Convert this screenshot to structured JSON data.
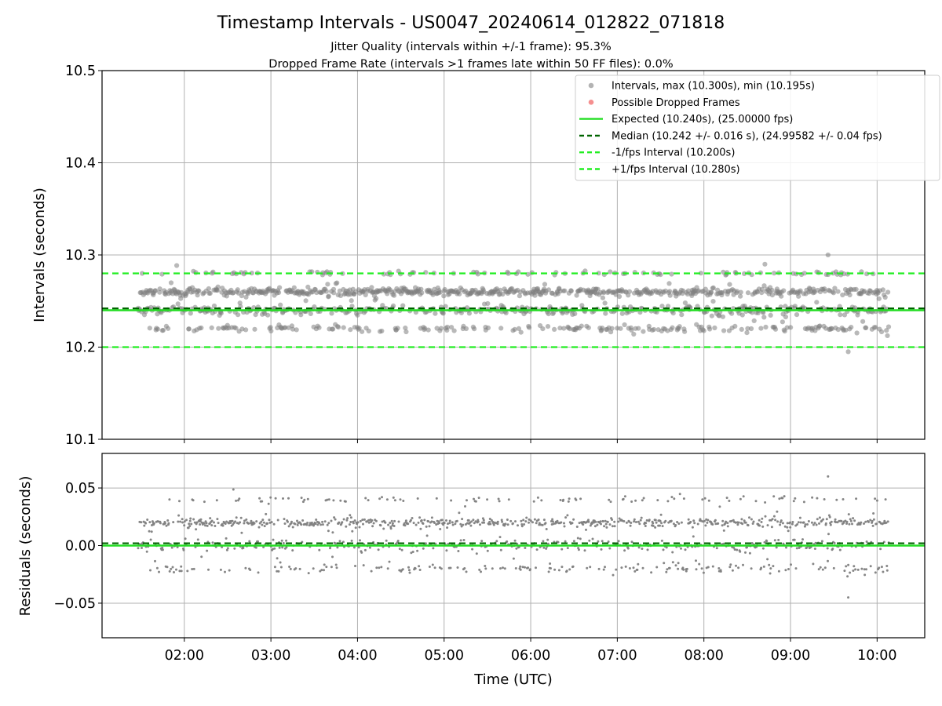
{
  "figure": {
    "title": "Timestamp Intervals - US0047_20240614_012822_071818",
    "subtitle_1": "Jitter Quality (intervals within +/-1 frame): 95.3%",
    "subtitle_2": "Dropped Frame Rate (intervals >1 frames late within 50 FF files): 0.0%",
    "xlabel": "Time (UTC)"
  },
  "colors": {
    "points": "#808080",
    "dropped": "#ef4444",
    "expected": "#22dd22",
    "median": "#006400",
    "interval_lines": "#22ee22",
    "grid": "#b0b0b0"
  },
  "chart_data": [
    {
      "type": "scatter",
      "panel": "top",
      "ylabel": "Intervals (seconds)",
      "xlim": [
        "01:03",
        "10:33"
      ],
      "ylim": [
        10.1,
        10.5
      ],
      "x_ticks": [
        "02:00",
        "03:00",
        "04:00",
        "05:00",
        "06:00",
        "07:00",
        "08:00",
        "09:00",
        "10:00"
      ],
      "y_ticks": [
        "10.1",
        "10.2",
        "10.3",
        "10.4",
        "10.5"
      ],
      "y_tick_values": [
        10.1,
        10.2,
        10.3,
        10.4,
        10.5
      ],
      "grid": true,
      "legend_position": "top-right",
      "time_span": [
        "01:28",
        "10:08"
      ],
      "series": [
        {
          "name": "Intervals, max (10.300s), min (10.195s)",
          "kind": "scatter",
          "levels": [
            {
              "value": 10.22,
              "spread": 0.003,
              "share": 0.16
            },
            {
              "value": 10.24,
              "spread": 0.004,
              "share": 0.28
            },
            {
              "value": 10.26,
              "spread": 0.003,
              "share": 0.48
            },
            {
              "value": 10.28,
              "spread": 0.002,
              "share": 0.08
            }
          ],
          "max": 10.3,
          "min": 10.195
        },
        {
          "name": "Possible Dropped Frames",
          "kind": "scatter",
          "values": []
        },
        {
          "name": "Expected (10.240s), (25.00000 fps)",
          "kind": "hline",
          "y": 10.24,
          "style": "solid"
        },
        {
          "name": "Median (10.242 +/- 0.016 s), (24.99582 +/- 0.04 fps)",
          "kind": "hline",
          "y": 10.242,
          "style": "dashed"
        },
        {
          "name": "-1/fps Interval (10.200s)",
          "kind": "hline",
          "y": 10.2,
          "style": "dashed"
        },
        {
          "name": "+1/fps Interval (10.280s)",
          "kind": "hline",
          "y": 10.28,
          "style": "dashed"
        }
      ]
    },
    {
      "type": "scatter",
      "panel": "bottom",
      "ylabel": "Residuals (seconds)",
      "xlabel": "Time (UTC)",
      "xlim": [
        "01:03",
        "10:33"
      ],
      "ylim": [
        -0.08,
        0.08
      ],
      "x_ticks": [
        "02:00",
        "03:00",
        "04:00",
        "05:00",
        "06:00",
        "07:00",
        "08:00",
        "09:00",
        "10:00"
      ],
      "y_ticks": [
        "0.05",
        "0.00",
        "−0.05"
      ],
      "y_tick_values": [
        0.05,
        0.0,
        -0.05
      ],
      "grid": true,
      "series": [
        {
          "name": "Residuals",
          "kind": "scatter",
          "levels": [
            {
              "value": -0.02,
              "spread": 0.003,
              "share": 0.16
            },
            {
              "value": 0.0,
              "spread": 0.004,
              "share": 0.28
            },
            {
              "value": 0.02,
              "spread": 0.003,
              "share": 0.48
            },
            {
              "value": 0.04,
              "spread": 0.002,
              "share": 0.08
            }
          ],
          "max": 0.06,
          "min": -0.045
        },
        {
          "name": "Expected",
          "kind": "hline",
          "y": 0.0,
          "style": "solid"
        },
        {
          "name": "Median",
          "kind": "hline",
          "y": 0.002,
          "style": "dashed"
        }
      ]
    }
  ]
}
